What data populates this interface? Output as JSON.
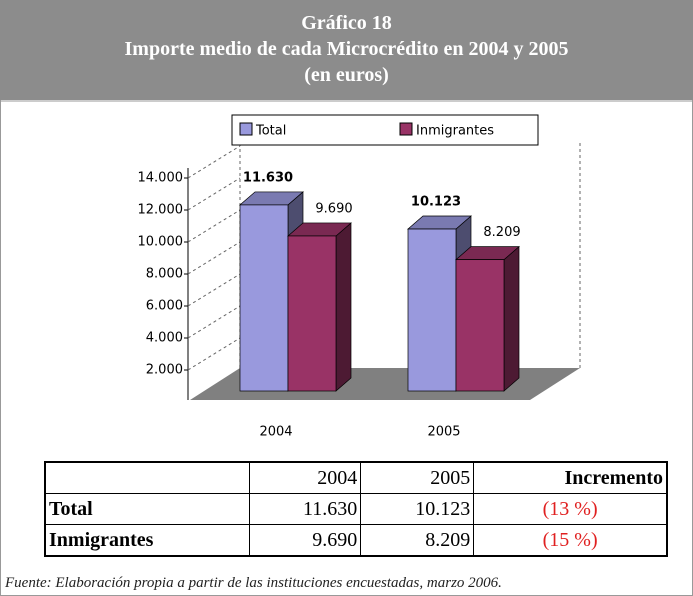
{
  "chart_data": {
    "type": "bar3d",
    "title_lines": [
      "Gráfico 18",
      "Importe medio de cada Microcrédito en 2004 y 2005",
      "(en euros)"
    ],
    "categories": [
      "2004",
      "2005"
    ],
    "series": [
      {
        "name": "Total",
        "color": "#9999dd",
        "values": [
          11630,
          10123
        ],
        "value_labels": [
          "11.630",
          "10.123"
        ]
      },
      {
        "name": "Inmigrantes",
        "color": "#993366",
        "values": [
          9690,
          8209
        ],
        "value_labels": [
          "9.690",
          "8.209"
        ]
      }
    ],
    "ylim": [
      0,
      14000
    ],
    "yticks": [
      {
        "value": 2000,
        "label": "2.000"
      },
      {
        "value": 4000,
        "label": "4.000"
      },
      {
        "value": 6000,
        "label": "6.000"
      },
      {
        "value": 8000,
        "label": "8.000"
      },
      {
        "value": 10000,
        "label": "10.000"
      },
      {
        "value": 12000,
        "label": "12.000"
      },
      {
        "value": 14000,
        "label": "14.000"
      }
    ],
    "grid": true,
    "legend": "top"
  },
  "table": {
    "header": [
      "2004",
      "2005",
      "Incremento"
    ],
    "rows": [
      [
        "Total",
        "11.630",
        "10.123",
        "(13 %)"
      ],
      [
        "Inmigrantes",
        "9.690",
        "8.209",
        "(15 %)"
      ]
    ]
  },
  "footer": "Fuente: Elaboración propia a partir de las instituciones encuestadas, marzo 2006."
}
